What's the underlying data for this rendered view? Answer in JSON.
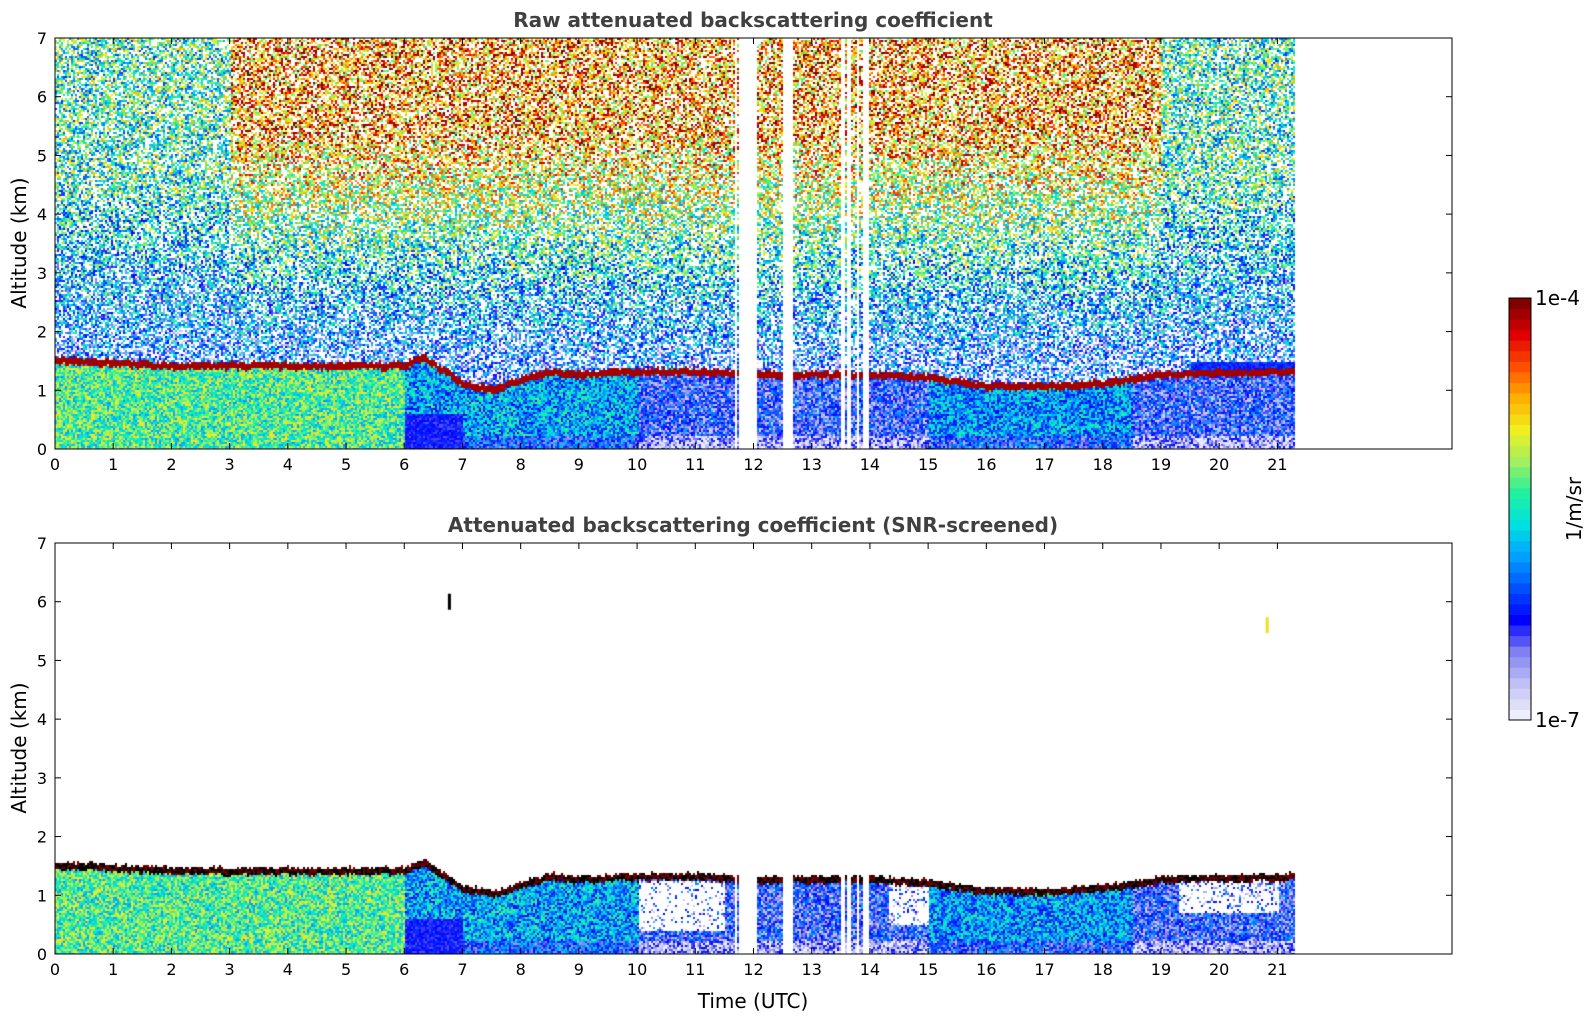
{
  "chart_data": [
    {
      "type": "heatmap",
      "title": "Raw attenuated backscattering coefficient",
      "xlabel": "",
      "ylabel": "Altitude (km)",
      "xlim": [
        0,
        24
      ],
      "ylim": [
        0,
        7
      ],
      "xticks": [
        "0",
        "1",
        "2",
        "3",
        "4",
        "5",
        "6",
        "7",
        "8",
        "9",
        "10",
        "11",
        "12",
        "13",
        "14",
        "15",
        "16",
        "17",
        "18",
        "19",
        "20",
        "21"
      ],
      "yticks": [
        "0",
        "1",
        "2",
        "3",
        "4",
        "5",
        "6",
        "7"
      ],
      "data_end_time": 21.3,
      "data_gaps_hours": [
        [
          11.65,
          11.7
        ],
        [
          11.75,
          12.05
        ],
        [
          12.5,
          12.65
        ],
        [
          13.5,
          13.55
        ],
        [
          13.6,
          13.65
        ],
        [
          13.75,
          13.8
        ],
        [
          13.85,
          13.95
        ]
      ],
      "layer_top_km": [
        [
          0,
          1.55
        ],
        [
          1,
          1.5
        ],
        [
          2,
          1.45
        ],
        [
          3,
          1.45
        ],
        [
          4,
          1.45
        ],
        [
          5,
          1.45
        ],
        [
          6,
          1.45
        ],
        [
          6.3,
          1.6
        ],
        [
          7,
          1.15
        ],
        [
          7.5,
          1.05
        ],
        [
          8,
          1.2
        ],
        [
          8.5,
          1.35
        ],
        [
          9,
          1.3
        ],
        [
          10,
          1.35
        ],
        [
          11,
          1.35
        ],
        [
          12,
          1.3
        ],
        [
          13,
          1.3
        ],
        [
          14,
          1.3
        ],
        [
          15,
          1.25
        ],
        [
          16,
          1.1
        ],
        [
          17,
          1.1
        ],
        [
          18,
          1.15
        ],
        [
          19,
          1.3
        ],
        [
          21.3,
          1.35
        ]
      ],
      "noise_pattern": "high signal (red) aloft 4-7 km from 3 to 19 UTC, blue/green below 3 km and after 19 UTC"
    },
    {
      "type": "heatmap",
      "title": "Attenuated backscattering coefficient (SNR-screened)",
      "xlabel": "Time (UTC)",
      "ylabel": "Altitude (km)",
      "xlim": [
        0,
        24
      ],
      "ylim": [
        0,
        7
      ],
      "xticks": [
        "0",
        "1",
        "2",
        "3",
        "4",
        "5",
        "6",
        "7",
        "8",
        "9",
        "10",
        "11",
        "12",
        "13",
        "14",
        "15",
        "16",
        "17",
        "18",
        "19",
        "20",
        "21"
      ],
      "yticks": [
        "0",
        "1",
        "2",
        "3",
        "4",
        "5",
        "6",
        "7"
      ],
      "data_end_time": 21.3,
      "isolated_features": [
        [
          6.75,
          6.0
        ],
        [
          20.8,
          5.6
        ]
      ],
      "colorbar": {
        "label": "1/m/sr",
        "min_label": "1e-7",
        "max_label": "1e-4",
        "colors": [
          "#ededfb",
          "#c0c0f5",
          "#8080f0",
          "#0000ff",
          "#0050ff",
          "#00a0ff",
          "#00e0e0",
          "#20f0a0",
          "#a0f060",
          "#f0f020",
          "#ffb000",
          "#ff5000",
          "#e00000",
          "#800000"
        ]
      }
    }
  ]
}
